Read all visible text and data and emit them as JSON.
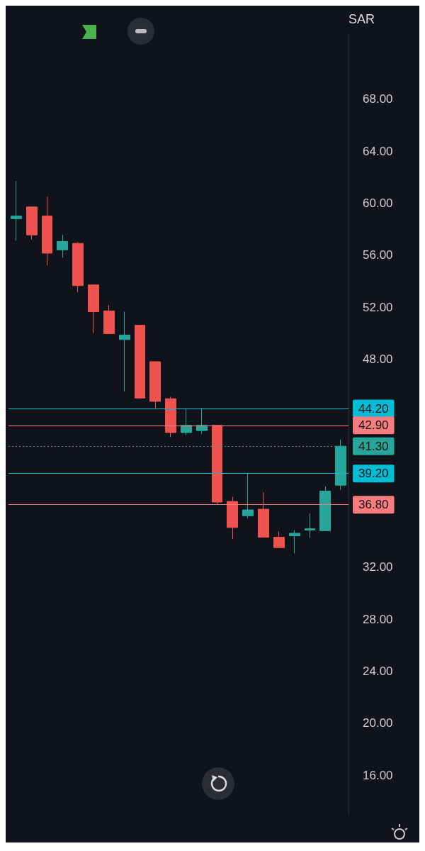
{
  "chart_data": {
    "type": "candlestick",
    "ylabel": "SAR",
    "categories": [
      null,
      null,
      null,
      null,
      null,
      null,
      null,
      null,
      null,
      null,
      null,
      null,
      null,
      null,
      null,
      null,
      null,
      null,
      null,
      null,
      null,
      null
    ],
    "ohlc": [
      [
        58.8,
        61.7,
        57.1,
        59.0
      ],
      [
        59.7,
        59.7,
        57.2,
        57.55
      ],
      [
        59.0,
        60.5,
        55.2,
        56.15
      ],
      [
        56.4,
        57.55,
        55.8,
        57.05
      ],
      [
        56.9,
        57.0,
        53.15,
        53.65
      ],
      [
        53.7,
        53.7,
        50.0,
        51.65
      ],
      [
        51.7,
        52.15,
        49.95,
        49.95
      ],
      [
        49.5,
        51.65,
        45.5,
        49.85
      ],
      [
        50.6,
        50.6,
        45.0,
        45.0
      ],
      [
        47.8,
        47.8,
        44.25,
        44.75
      ],
      [
        44.95,
        45.1,
        42.0,
        42.35
      ],
      [
        42.35,
        44.2,
        42.15,
        42.9
      ],
      [
        42.5,
        44.2,
        42.25,
        42.9
      ],
      [
        42.9,
        42.9,
        36.8,
        37.0
      ],
      [
        37.05,
        37.4,
        34.15,
        35.05
      ],
      [
        35.95,
        39.2,
        35.75,
        36.4
      ],
      [
        36.45,
        37.75,
        34.3,
        34.3
      ],
      [
        34.3,
        34.75,
        33.5,
        33.5
      ],
      [
        34.4,
        34.85,
        33.05,
        34.6
      ],
      [
        34.85,
        36.15,
        34.25,
        34.95
      ],
      [
        34.8,
        38.2,
        34.8,
        37.85
      ],
      [
        38.3,
        41.8,
        37.95,
        41.3
      ]
    ],
    "ylim": [
      13,
      73
    ],
    "yticks": [
      {
        "value": 16,
        "label": "16.00"
      },
      {
        "value": 20,
        "label": "20.00"
      },
      {
        "value": 24,
        "label": "24.00"
      },
      {
        "value": 28,
        "label": "28.00"
      },
      {
        "value": 32,
        "label": "32.00"
      },
      {
        "value": 48,
        "label": "48.00"
      },
      {
        "value": 52,
        "label": "52.00"
      },
      {
        "value": 56,
        "label": "56.00"
      },
      {
        "value": 60,
        "label": "60.00"
      },
      {
        "value": 64,
        "label": "64.00"
      },
      {
        "value": 68,
        "label": "68.00"
      }
    ],
    "grid": false,
    "ref_lines": [
      {
        "axis": "y",
        "value": 44.2,
        "label": "44.20",
        "color": "#00bcd4",
        "line_style": "solid"
      },
      {
        "axis": "y",
        "value": 42.9,
        "label": "42.90",
        "color": "#f77c80",
        "line_style": "solid"
      },
      {
        "axis": "y",
        "value": 41.3,
        "label": "41.30",
        "color": "#26a69a",
        "line_style": "dotted"
      },
      {
        "axis": "y",
        "value": 39.2,
        "label": "39.20",
        "color": "#00bcd4",
        "line_style": "solid"
      },
      {
        "axis": "y",
        "value": 36.8,
        "label": "36.80",
        "color": "#f77c80",
        "line_style": "solid"
      }
    ]
  }
}
